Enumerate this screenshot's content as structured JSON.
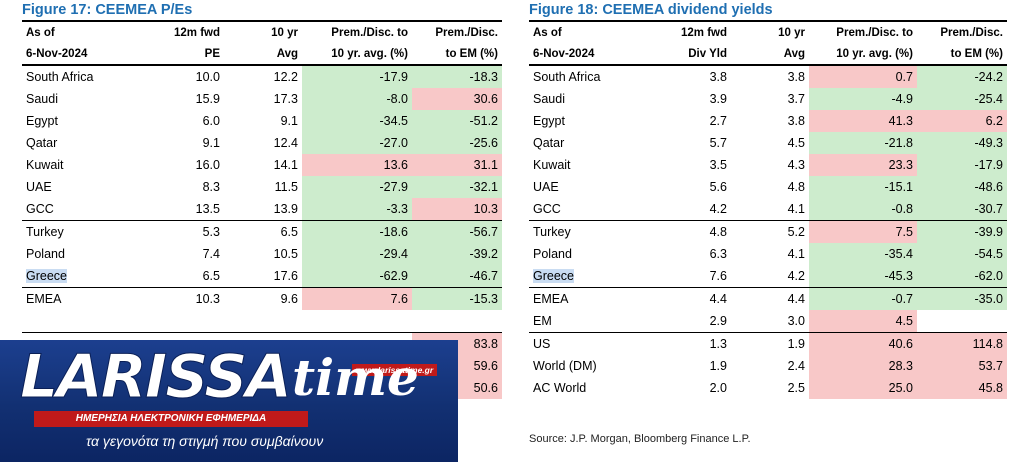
{
  "fig17": {
    "title": "Figure 17: CEEMEA P/Es",
    "headers_top": [
      "As of",
      "12m fwd",
      "10 yr",
      "Prem./Disc. to",
      "Prem./Disc."
    ],
    "headers_bottom": [
      "6-Nov-2024",
      "PE",
      "Avg",
      "10 yr. avg. (%)",
      "to EM (%)"
    ],
    "rows": [
      {
        "name": "South Africa",
        "v1": "10.0",
        "v2": "12.2",
        "v3": "-17.9",
        "v4": "-18.3",
        "c3": "neg",
        "c4": "neg",
        "sep": false
      },
      {
        "name": "Saudi",
        "v1": "15.9",
        "v2": "17.3",
        "v3": "-8.0",
        "v4": "30.6",
        "c3": "neg",
        "c4": "pos",
        "sep": false
      },
      {
        "name": "Egypt",
        "v1": "6.0",
        "v2": "9.1",
        "v3": "-34.5",
        "v4": "-51.2",
        "c3": "neg",
        "c4": "neg",
        "sep": false
      },
      {
        "name": "Qatar",
        "v1": "9.1",
        "v2": "12.4",
        "v3": "-27.0",
        "v4": "-25.6",
        "c3": "neg",
        "c4": "neg",
        "sep": false
      },
      {
        "name": "Kuwait",
        "v1": "16.0",
        "v2": "14.1",
        "v3": "13.6",
        "v4": "31.1",
        "c3": "pos",
        "c4": "pos",
        "sep": false
      },
      {
        "name": "UAE",
        "v1": "8.3",
        "v2": "11.5",
        "v3": "-27.9",
        "v4": "-32.1",
        "c3": "neg",
        "c4": "neg",
        "sep": false
      },
      {
        "name": "GCC",
        "v1": "13.5",
        "v2": "13.9",
        "v3": "-3.3",
        "v4": "10.3",
        "c3": "neg",
        "c4": "pos",
        "sep": false
      },
      {
        "name": "Turkey",
        "v1": "5.3",
        "v2": "6.5",
        "v3": "-18.6",
        "v4": "-56.7",
        "c3": "neg",
        "c4": "neg",
        "sep": true
      },
      {
        "name": "Poland",
        "v1": "7.4",
        "v2": "10.5",
        "v3": "-29.4",
        "v4": "-39.2",
        "c3": "neg",
        "c4": "neg",
        "sep": false
      },
      {
        "name": "Greece",
        "v1": "6.5",
        "v2": "17.6",
        "v3": "-62.9",
        "v4": "-46.7",
        "c3": "neg",
        "c4": "neg",
        "sep": false,
        "hl": true
      },
      {
        "name": "EMEA",
        "v1": "10.3",
        "v2": "9.6",
        "v3": "7.6",
        "v4": "-15.3",
        "c3": "pos",
        "c4": "neg",
        "sep": true
      },
      {
        "name": "",
        "v1": "",
        "v2": "",
        "v3": "",
        "v4": "",
        "c3": "",
        "c4": "",
        "sep": false
      },
      {
        "name": "",
        "v1": "",
        "v2": "",
        "v3": "",
        "v4": "83.8",
        "c3": "",
        "c4": "pos",
        "sep": true
      },
      {
        "name": "",
        "v1": "",
        "v2": "",
        "v3": "",
        "v4": "59.6",
        "c3": "",
        "c4": "pos",
        "sep": false
      },
      {
        "name": "",
        "v1": "",
        "v2": "",
        "v3": "",
        "v4": "50.6",
        "c3": "",
        "c4": "pos",
        "sep": false
      }
    ]
  },
  "fig18": {
    "title": "Figure 18: CEEMEA dividend yields",
    "headers_top": [
      "As of",
      "12m fwd",
      "10 yr",
      "Prem./Disc. to",
      "Prem./Disc."
    ],
    "headers_bottom": [
      "6-Nov-2024",
      "Div Yld",
      "Avg",
      "10 yr. avg. (%)",
      "to EM (%)"
    ],
    "rows": [
      {
        "name": "South Africa",
        "v1": "3.8",
        "v2": "3.8",
        "v3": "0.7",
        "v4": "-24.2",
        "c3": "pos",
        "c4": "neg",
        "sep": false
      },
      {
        "name": "Saudi",
        "v1": "3.9",
        "v2": "3.7",
        "v3": "-4.9",
        "v4": "-25.4",
        "c3": "neg",
        "c4": "neg",
        "sep": false
      },
      {
        "name": "Egypt",
        "v1": "2.7",
        "v2": "3.8",
        "v3": "41.3",
        "v4": "6.2",
        "c3": "pos",
        "c4": "pos",
        "sep": false
      },
      {
        "name": "Qatar",
        "v1": "5.7",
        "v2": "4.5",
        "v3": "-21.8",
        "v4": "-49.3",
        "c3": "neg",
        "c4": "neg",
        "sep": false
      },
      {
        "name": "Kuwait",
        "v1": "3.5",
        "v2": "4.3",
        "v3": "23.3",
        "v4": "-17.9",
        "c3": "pos",
        "c4": "neg",
        "sep": false
      },
      {
        "name": "UAE",
        "v1": "5.6",
        "v2": "4.8",
        "v3": "-15.1",
        "v4": "-48.6",
        "c3": "neg",
        "c4": "neg",
        "sep": false
      },
      {
        "name": "GCC",
        "v1": "4.2",
        "v2": "4.1",
        "v3": "-0.8",
        "v4": "-30.7",
        "c3": "neg",
        "c4": "neg",
        "sep": false
      },
      {
        "name": "Turkey",
        "v1": "4.8",
        "v2": "5.2",
        "v3": "7.5",
        "v4": "-39.9",
        "c3": "pos",
        "c4": "neg",
        "sep": true
      },
      {
        "name": "Poland",
        "v1": "6.3",
        "v2": "4.1",
        "v3": "-35.4",
        "v4": "-54.5",
        "c3": "neg",
        "c4": "neg",
        "sep": false
      },
      {
        "name": "Greece",
        "v1": "7.6",
        "v2": "4.2",
        "v3": "-45.3",
        "v4": "-62.0",
        "c3": "neg",
        "c4": "neg",
        "sep": false,
        "hl": true
      },
      {
        "name": "EMEA",
        "v1": "4.4",
        "v2": "4.4",
        "v3": "-0.7",
        "v4": "-35.0",
        "c3": "neg",
        "c4": "neg",
        "sep": true
      },
      {
        "name": "EM",
        "v1": "2.9",
        "v2": "3.0",
        "v3": "4.5",
        "v4": "",
        "c3": "pos",
        "c4": "",
        "sep": false
      },
      {
        "name": "US",
        "v1": "1.3",
        "v2": "1.9",
        "v3": "40.6",
        "v4": "114.8",
        "c3": "pos",
        "c4": "pos",
        "sep": true
      },
      {
        "name": "World (DM)",
        "v1": "1.9",
        "v2": "2.4",
        "v3": "28.3",
        "v4": "53.7",
        "c3": "pos",
        "c4": "pos",
        "sep": false
      },
      {
        "name": "AC World",
        "v1": "2.0",
        "v2": "2.5",
        "v3": "25.0",
        "v4": "45.8",
        "c3": "pos",
        "c4": "pos",
        "sep": false
      }
    ],
    "source": "Source: J.P. Morgan, Bloomberg Finance L.P."
  },
  "logo": {
    "brand": "LARISSA",
    "brand_time": "time",
    "url": "www.larissatime.gr",
    "tagline_bar": "ΗΜΕΡΗΣΙΑ ΗΛΕΚΤΡΟΝΙΚΗ ΕΦΗΜΕΡΙΔΑ",
    "tagline": "τα γεγονότα τη στιγμή που συμβαίνουν"
  }
}
